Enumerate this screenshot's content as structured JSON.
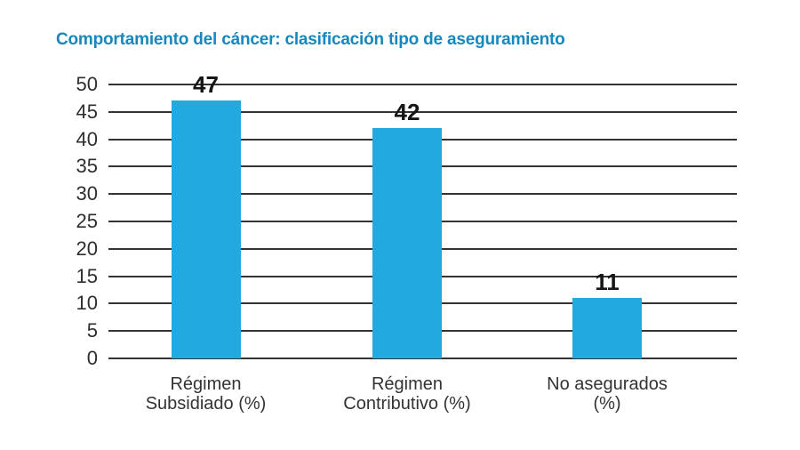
{
  "title": "Comportamiento del cáncer: clasificación tipo de aseguramiento",
  "colors": {
    "title": "#1787BC",
    "bar": "#21A9E0",
    "gridline": "#333333",
    "tick_label": "#2e2e2e",
    "category_label": "#333333",
    "value_label": "#161616",
    "background": "#ffffff"
  },
  "chart_data": {
    "type": "bar",
    "title": "Comportamiento del cáncer: clasificación tipo de aseguramiento",
    "categories": [
      {
        "label": "Régimen Subsidiado (%)",
        "lines": [
          "Régimen",
          "Subsidiado (%)"
        ]
      },
      {
        "label": "Régimen Contributivo (%)",
        "lines": [
          "Régimen",
          "Contributivo (%)"
        ]
      },
      {
        "label": "No asegurados (%)",
        "lines": [
          "No asegurados",
          "(%)"
        ]
      }
    ],
    "values": [
      47,
      42,
      11
    ],
    "value_labels": [
      "47",
      "42",
      "11"
    ],
    "xlabel": "",
    "ylabel": "",
    "ylim": [
      0,
      50
    ],
    "yticks": [
      0,
      5,
      10,
      15,
      20,
      25,
      30,
      35,
      40,
      45,
      50
    ],
    "grid": true,
    "legend": false
  }
}
